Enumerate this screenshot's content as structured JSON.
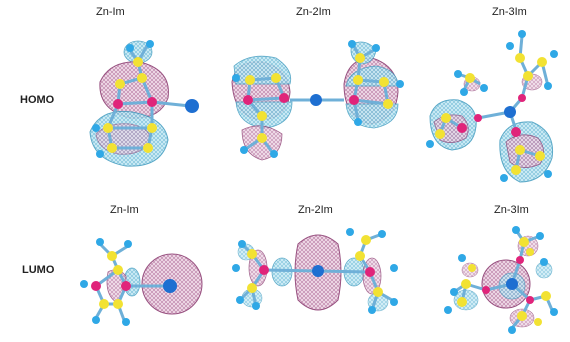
{
  "figure": {
    "rows": [
      {
        "label": "HOMO",
        "panels": [
          "Zn-Im",
          "Zn-2Im",
          "Zn-3Im"
        ]
      },
      {
        "label": "LUMO",
        "panels": [
          "Zn-Im",
          "Zn-2Im",
          "Zn-3Im"
        ]
      }
    ],
    "legend_colors": {
      "lobe_positive": "#5fb8d6",
      "lobe_negative": "#b06a9a",
      "atom_zinc": "#1e6fd1",
      "atom_carbon": "#f2e233",
      "atom_nitrogen": "#e0247a",
      "atom_hydrogen": "#2fa8e6",
      "bond": "#6fb0d8"
    }
  }
}
